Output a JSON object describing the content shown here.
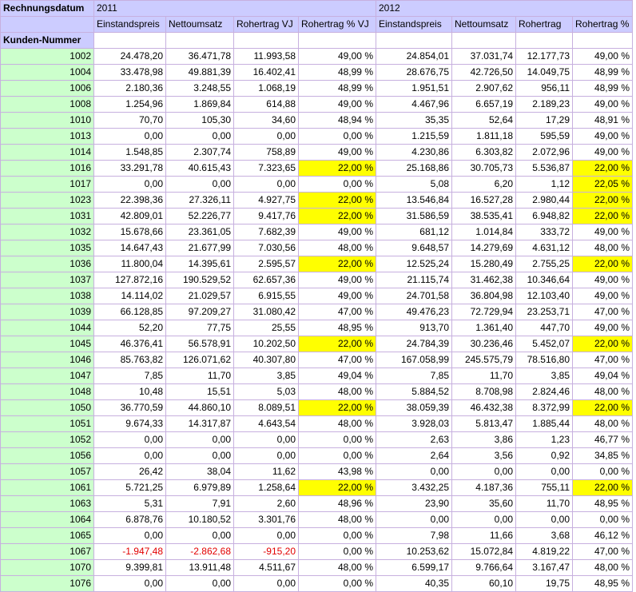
{
  "header": {
    "corner_label": "Rechnungsdatum",
    "year_1": "2011",
    "year_2": "2012",
    "row_label": "Kunden-Nummer",
    "columns": [
      "Einstandspreis",
      "Nettoumsatz",
      "Rohertrag VJ",
      "Rohertrag % VJ",
      "Einstandspreis",
      "Nettoumsatz",
      "Rohertrag",
      "Rohertrag %"
    ]
  },
  "colors": {
    "header_bg": "#ccccff",
    "key_bg": "#ccffcc",
    "highlight": "#ffff00",
    "negative": "#e20000"
  },
  "rows": [
    {
      "id": "1002",
      "v": [
        "24.478,20",
        "36.471,78",
        "11.993,58",
        "49,00 %",
        "24.854,01",
        "37.031,74",
        "12.177,73",
        "49,00 %"
      ]
    },
    {
      "id": "1004",
      "v": [
        "33.478,98",
        "49.881,39",
        "16.402,41",
        "48,99 %",
        "28.676,75",
        "42.726,50",
        "14.049,75",
        "48,99 %"
      ]
    },
    {
      "id": "1006",
      "v": [
        "2.180,36",
        "3.248,55",
        "1.068,19",
        "48,99 %",
        "1.951,51",
        "2.907,62",
        "956,11",
        "48,99 %"
      ]
    },
    {
      "id": "1008",
      "v": [
        "1.254,96",
        "1.869,84",
        "614,88",
        "49,00 %",
        "4.467,96",
        "6.657,19",
        "2.189,23",
        "49,00 %"
      ]
    },
    {
      "id": "1010",
      "v": [
        "70,70",
        "105,30",
        "34,60",
        "48,94 %",
        "35,35",
        "52,64",
        "17,29",
        "48,91 %"
      ]
    },
    {
      "id": "1013",
      "v": [
        "0,00",
        "0,00",
        "0,00",
        "0,00 %",
        "1.215,59",
        "1.811,18",
        "595,59",
        "49,00 %"
      ]
    },
    {
      "id": "1014",
      "v": [
        "1.548,85",
        "2.307,74",
        "758,89",
        "49,00 %",
        "4.230,86",
        "6.303,82",
        "2.072,96",
        "49,00 %"
      ]
    },
    {
      "id": "1016",
      "v": [
        "33.291,78",
        "40.615,43",
        "7.323,65",
        "22,00 %",
        "25.168,86",
        "30.705,73",
        "5.536,87",
        "22,00 %"
      ],
      "hl": [
        3,
        7
      ]
    },
    {
      "id": "1017",
      "v": [
        "0,00",
        "0,00",
        "0,00",
        "0,00 %",
        "5,08",
        "6,20",
        "1,12",
        "22,05 %"
      ],
      "hl": [
        7
      ]
    },
    {
      "id": "1023",
      "v": [
        "22.398,36",
        "27.326,11",
        "4.927,75",
        "22,00 %",
        "13.546,84",
        "16.527,28",
        "2.980,44",
        "22,00 %"
      ],
      "hl": [
        3,
        7
      ]
    },
    {
      "id": "1031",
      "v": [
        "42.809,01",
        "52.226,77",
        "9.417,76",
        "22,00 %",
        "31.586,59",
        "38.535,41",
        "6.948,82",
        "22,00 %"
      ],
      "hl": [
        3,
        7
      ]
    },
    {
      "id": "1032",
      "v": [
        "15.678,66",
        "23.361,05",
        "7.682,39",
        "49,00 %",
        "681,12",
        "1.014,84",
        "333,72",
        "49,00 %"
      ]
    },
    {
      "id": "1035",
      "v": [
        "14.647,43",
        "21.677,99",
        "7.030,56",
        "48,00 %",
        "9.648,57",
        "14.279,69",
        "4.631,12",
        "48,00 %"
      ]
    },
    {
      "id": "1036",
      "v": [
        "11.800,04",
        "14.395,61",
        "2.595,57",
        "22,00 %",
        "12.525,24",
        "15.280,49",
        "2.755,25",
        "22,00 %"
      ],
      "hl": [
        3,
        7
      ]
    },
    {
      "id": "1037",
      "v": [
        "127.872,16",
        "190.529,52",
        "62.657,36",
        "49,00 %",
        "21.115,74",
        "31.462,38",
        "10.346,64",
        "49,00 %"
      ]
    },
    {
      "id": "1038",
      "v": [
        "14.114,02",
        "21.029,57",
        "6.915,55",
        "49,00 %",
        "24.701,58",
        "36.804,98",
        "12.103,40",
        "49,00 %"
      ]
    },
    {
      "id": "1039",
      "v": [
        "66.128,85",
        "97.209,27",
        "31.080,42",
        "47,00 %",
        "49.476,23",
        "72.729,94",
        "23.253,71",
        "47,00 %"
      ]
    },
    {
      "id": "1044",
      "v": [
        "52,20",
        "77,75",
        "25,55",
        "48,95 %",
        "913,70",
        "1.361,40",
        "447,70",
        "49,00 %"
      ]
    },
    {
      "id": "1045",
      "v": [
        "46.376,41",
        "56.578,91",
        "10.202,50",
        "22,00 %",
        "24.784,39",
        "30.236,46",
        "5.452,07",
        "22,00 %"
      ],
      "hl": [
        3,
        7
      ]
    },
    {
      "id": "1046",
      "v": [
        "85.763,82",
        "126.071,62",
        "40.307,80",
        "47,00 %",
        "167.058,99",
        "245.575,79",
        "78.516,80",
        "47,00 %"
      ]
    },
    {
      "id": "1047",
      "v": [
        "7,85",
        "11,70",
        "3,85",
        "49,04 %",
        "7,85",
        "11,70",
        "3,85",
        "49,04 %"
      ]
    },
    {
      "id": "1048",
      "v": [
        "10,48",
        "15,51",
        "5,03",
        "48,00 %",
        "5.884,52",
        "8.708,98",
        "2.824,46",
        "48,00 %"
      ]
    },
    {
      "id": "1050",
      "v": [
        "36.770,59",
        "44.860,10",
        "8.089,51",
        "22,00 %",
        "38.059,39",
        "46.432,38",
        "8.372,99",
        "22,00 %"
      ],
      "hl": [
        3,
        7
      ]
    },
    {
      "id": "1051",
      "v": [
        "9.674,33",
        "14.317,87",
        "4.643,54",
        "48,00 %",
        "3.928,03",
        "5.813,47",
        "1.885,44",
        "48,00 %"
      ]
    },
    {
      "id": "1052",
      "v": [
        "0,00",
        "0,00",
        "0,00",
        "0,00 %",
        "2,63",
        "3,86",
        "1,23",
        "46,77 %"
      ]
    },
    {
      "id": "1056",
      "v": [
        "0,00",
        "0,00",
        "0,00",
        "0,00 %",
        "2,64",
        "3,56",
        "0,92",
        "34,85 %"
      ]
    },
    {
      "id": "1057",
      "v": [
        "26,42",
        "38,04",
        "11,62",
        "43,98 %",
        "0,00",
        "0,00",
        "0,00",
        "0,00 %"
      ]
    },
    {
      "id": "1061",
      "v": [
        "5.721,25",
        "6.979,89",
        "1.258,64",
        "22,00 %",
        "3.432,25",
        "4.187,36",
        "755,11",
        "22,00 %"
      ],
      "hl": [
        3,
        7
      ]
    },
    {
      "id": "1063",
      "v": [
        "5,31",
        "7,91",
        "2,60",
        "48,96 %",
        "23,90",
        "35,60",
        "11,70",
        "48,95 %"
      ]
    },
    {
      "id": "1064",
      "v": [
        "6.878,76",
        "10.180,52",
        "3.301,76",
        "48,00 %",
        "0,00",
        "0,00",
        "0,00",
        "0,00 %"
      ]
    },
    {
      "id": "1065",
      "v": [
        "0,00",
        "0,00",
        "0,00",
        "0,00 %",
        "7,98",
        "11,66",
        "3,68",
        "46,12 %"
      ]
    },
    {
      "id": "1067",
      "v": [
        "-1.947,48",
        "-2.862,68",
        "-915,20",
        "0,00 %",
        "10.253,62",
        "15.072,84",
        "4.819,22",
        "47,00 %"
      ],
      "neg": [
        0,
        1,
        2
      ]
    },
    {
      "id": "1070",
      "v": [
        "9.399,81",
        "13.911,48",
        "4.511,67",
        "48,00 %",
        "6.599,17",
        "9.766,64",
        "3.167,47",
        "48,00 %"
      ]
    },
    {
      "id": "1076",
      "v": [
        "0,00",
        "0,00",
        "0,00",
        "0,00 %",
        "40,35",
        "60,10",
        "19,75",
        "48,95 %"
      ]
    }
  ]
}
